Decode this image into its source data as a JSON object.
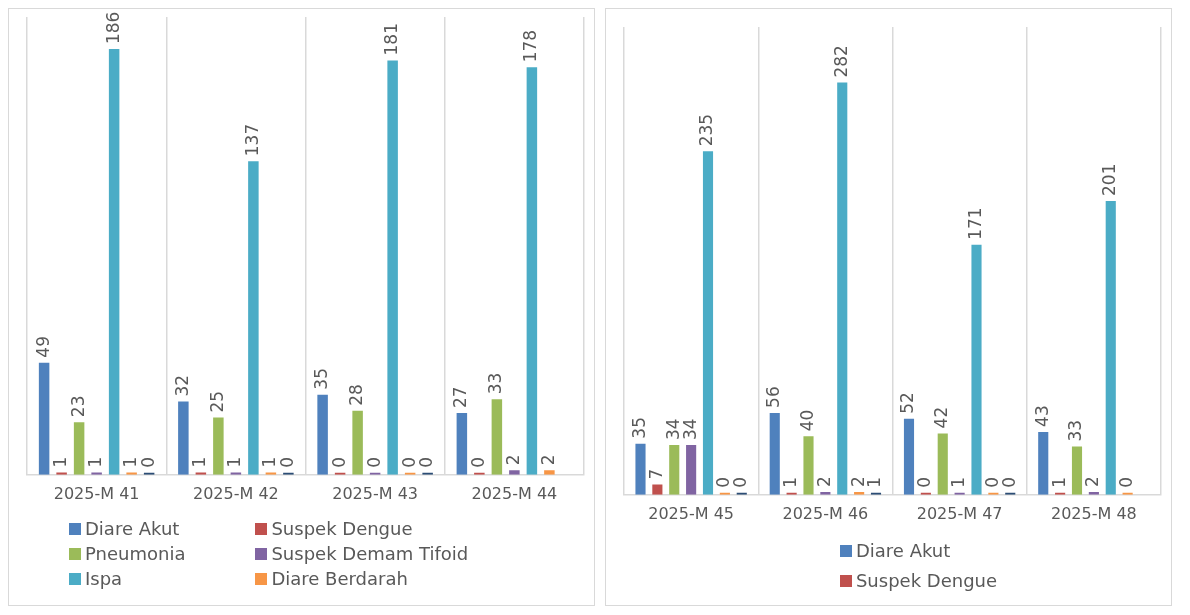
{
  "chart_data": [
    {
      "type": "bar",
      "categories": [
        "2025-M 41",
        "2025-M 42",
        "2025-M 43",
        "2025-M 44"
      ],
      "ylim": [
        0,
        200
      ],
      "tick_labels": "x",
      "grid": "x",
      "legend": "bottom",
      "data_labels": true,
      "series": [
        {
          "name": "Diare Akut",
          "color": "#4f81bd",
          "values": [
            49,
            32,
            35,
            27
          ]
        },
        {
          "name": "Suspek Dengue",
          "color": "#c0504d",
          "values": [
            1,
            1,
            0,
            0
          ]
        },
        {
          "name": "Pneumonia",
          "color": "#9bbb59",
          "values": [
            23,
            25,
            28,
            33
          ]
        },
        {
          "name": "Suspek Demam Tifoid",
          "color": "#8064a2",
          "values": [
            1,
            1,
            0,
            2
          ]
        },
        {
          "name": "Ispa",
          "color": "#4bacc6",
          "values": [
            186,
            137,
            181,
            178
          ]
        },
        {
          "name": "Diare Berdarah",
          "color": "#f79646",
          "values": [
            1,
            1,
            0,
            2
          ]
        },
        {
          "color": "#2c4d75",
          "values": [
            0,
            0,
            0,
            null
          ]
        }
      ]
    },
    {
      "type": "bar",
      "categories": [
        "2025-M 45",
        "2025-M 46",
        "2025-M 47",
        "2025-M 48"
      ],
      "ylim": [
        0,
        320
      ],
      "tick_labels": "x",
      "grid": "x",
      "legend": "bottom",
      "data_labels": true,
      "series": [
        {
          "name": "Diare Akut",
          "color": "#4f81bd",
          "values": [
            35,
            56,
            52,
            43
          ]
        },
        {
          "name": "Suspek Dengue",
          "color": "#c0504d",
          "values": [
            7,
            1,
            0,
            1
          ]
        },
        {
          "color": "#9bbb59",
          "values": [
            34,
            40,
            42,
            33
          ]
        },
        {
          "color": "#8064a2",
          "values": [
            34,
            2,
            1,
            2
          ]
        },
        {
          "color": "#4bacc6",
          "values": [
            235,
            282,
            171,
            201
          ]
        },
        {
          "color": "#f79646",
          "values": [
            0,
            2,
            0,
            0
          ]
        },
        {
          "color": "#2c4d75",
          "values": [
            0,
            1,
            0,
            null
          ]
        }
      ]
    }
  ]
}
